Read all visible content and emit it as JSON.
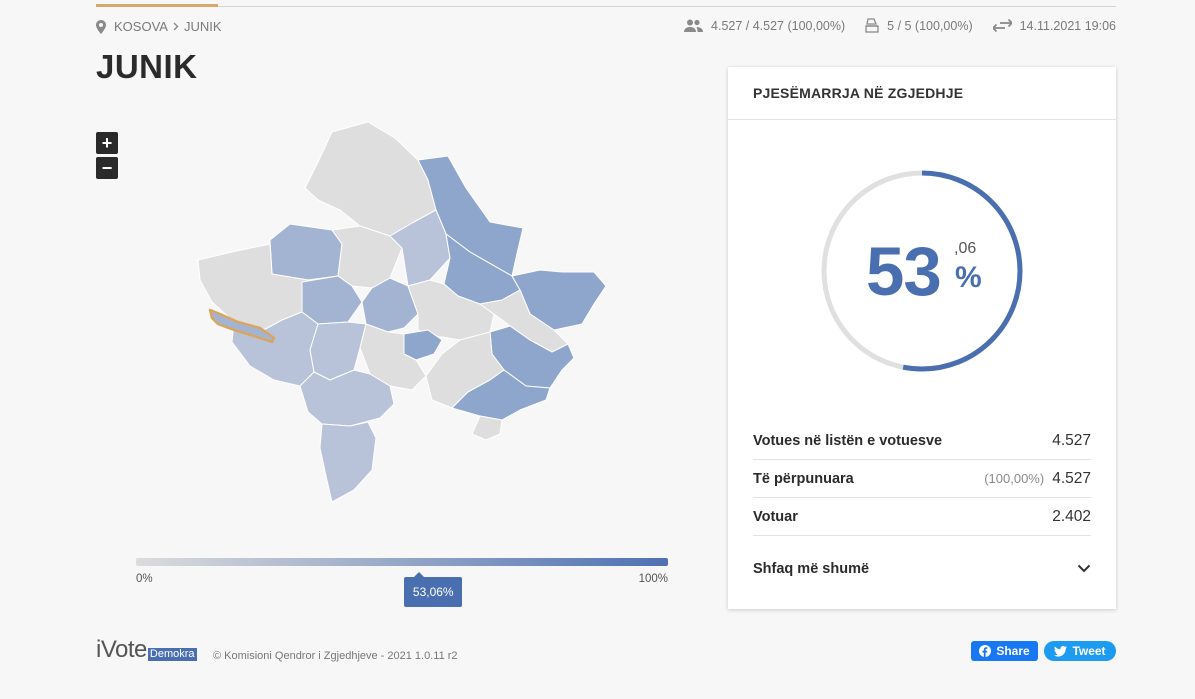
{
  "breadcrumb": {
    "items": [
      "KOSOVA",
      "JUNIK"
    ]
  },
  "stats": {
    "voters": "4.527 / 4.527 (100,00%)",
    "stations": "5 / 5 (100,00%)",
    "updated": "14.11.2021 19:06"
  },
  "page_title": "JUNIK",
  "map": {
    "zoom_in": "+",
    "zoom_out": "−",
    "highlight_color": "#d9a560",
    "colors": {
      "empty": "#dedede",
      "light": "#b8c3d9",
      "mid": "#a3b4d3",
      "dark": "#8ea5cc"
    }
  },
  "legend": {
    "min": "0%",
    "max": "100%",
    "value": "53,06%",
    "fraction": 0.5306
  },
  "panel": {
    "title": "PJESËMARRJA NË ZGJEDHJE",
    "percent_int": "53",
    "percent_dec": ",06",
    "percent_sign": "%",
    "fraction": 0.5306,
    "rows": [
      {
        "label": "Votues në listën e votuesve",
        "pct": "",
        "value": "4.527"
      },
      {
        "label": "Të përpunuara",
        "pct": "(100,00%)",
        "value": "4.527"
      },
      {
        "label": "Votuar",
        "pct": "",
        "value": "2.402"
      }
    ],
    "more_label": "Shfaq më shumë"
  },
  "footer": {
    "logo_text": "iVote",
    "logo_badge": "Demokra",
    "copyright": "© Komisioni Qendror i Zgjedhjeve - 2021 1.0.11 r2",
    "share_fb": "Share",
    "share_tw": "Tweet"
  },
  "colors": {
    "accent": "#4a6fb0",
    "accent_top": "#d8a86a"
  }
}
